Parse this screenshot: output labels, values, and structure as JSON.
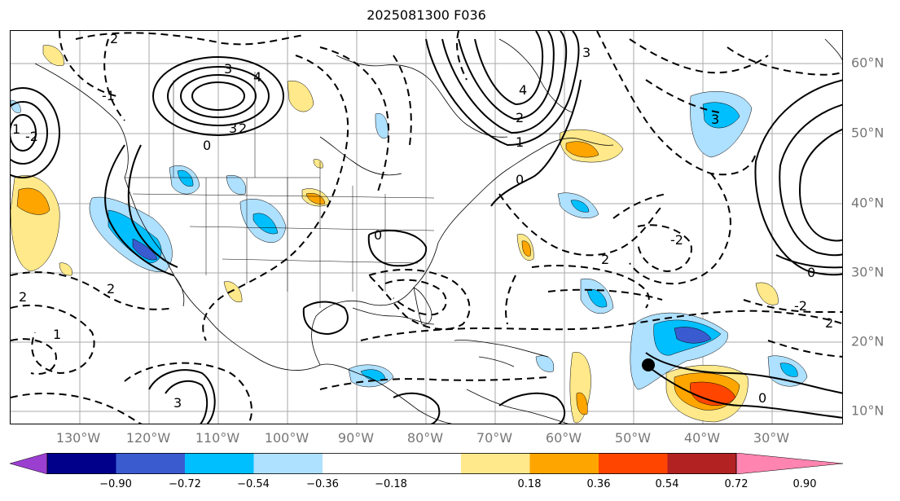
{
  "title": "2025081300 F036",
  "longitude_labels": [
    "130°W",
    "120°W",
    "110°W",
    "100°W",
    "90°W",
    "80°W",
    "70°W",
    "60°W",
    "50°W",
    "40°W",
    "30°W"
  ],
  "latitude_labels": [
    "60°N",
    "50°N",
    "40°N",
    "30°N",
    "20°N",
    "10°N"
  ],
  "colorbar": {
    "ticks": [
      "−0.90",
      "−0.72",
      "−0.54",
      "−0.36",
      "−0.18",
      "0.18",
      "0.36",
      "0.54",
      "0.72",
      "0.90"
    ],
    "colors": [
      "#9b3fd1",
      "#00008b",
      "#3a5bd0",
      "#00bfff",
      "#aee0ff",
      "#ffffff",
      "#ffe98a",
      "#ffa500",
      "#ff4500",
      "#b22222",
      "#ff85b0"
    ]
  },
  "contour_labels": [
    "2",
    "3",
    "4",
    "3",
    "2",
    "1",
    "0",
    "-1",
    "-2",
    "2",
    "3",
    "4",
    "3",
    "2",
    "1",
    "0",
    "0",
    "2",
    "-2",
    "-2",
    "0",
    "1",
    "2",
    "3",
    "2",
    "0"
  ],
  "storm_marker": "tropical-system-center"
}
